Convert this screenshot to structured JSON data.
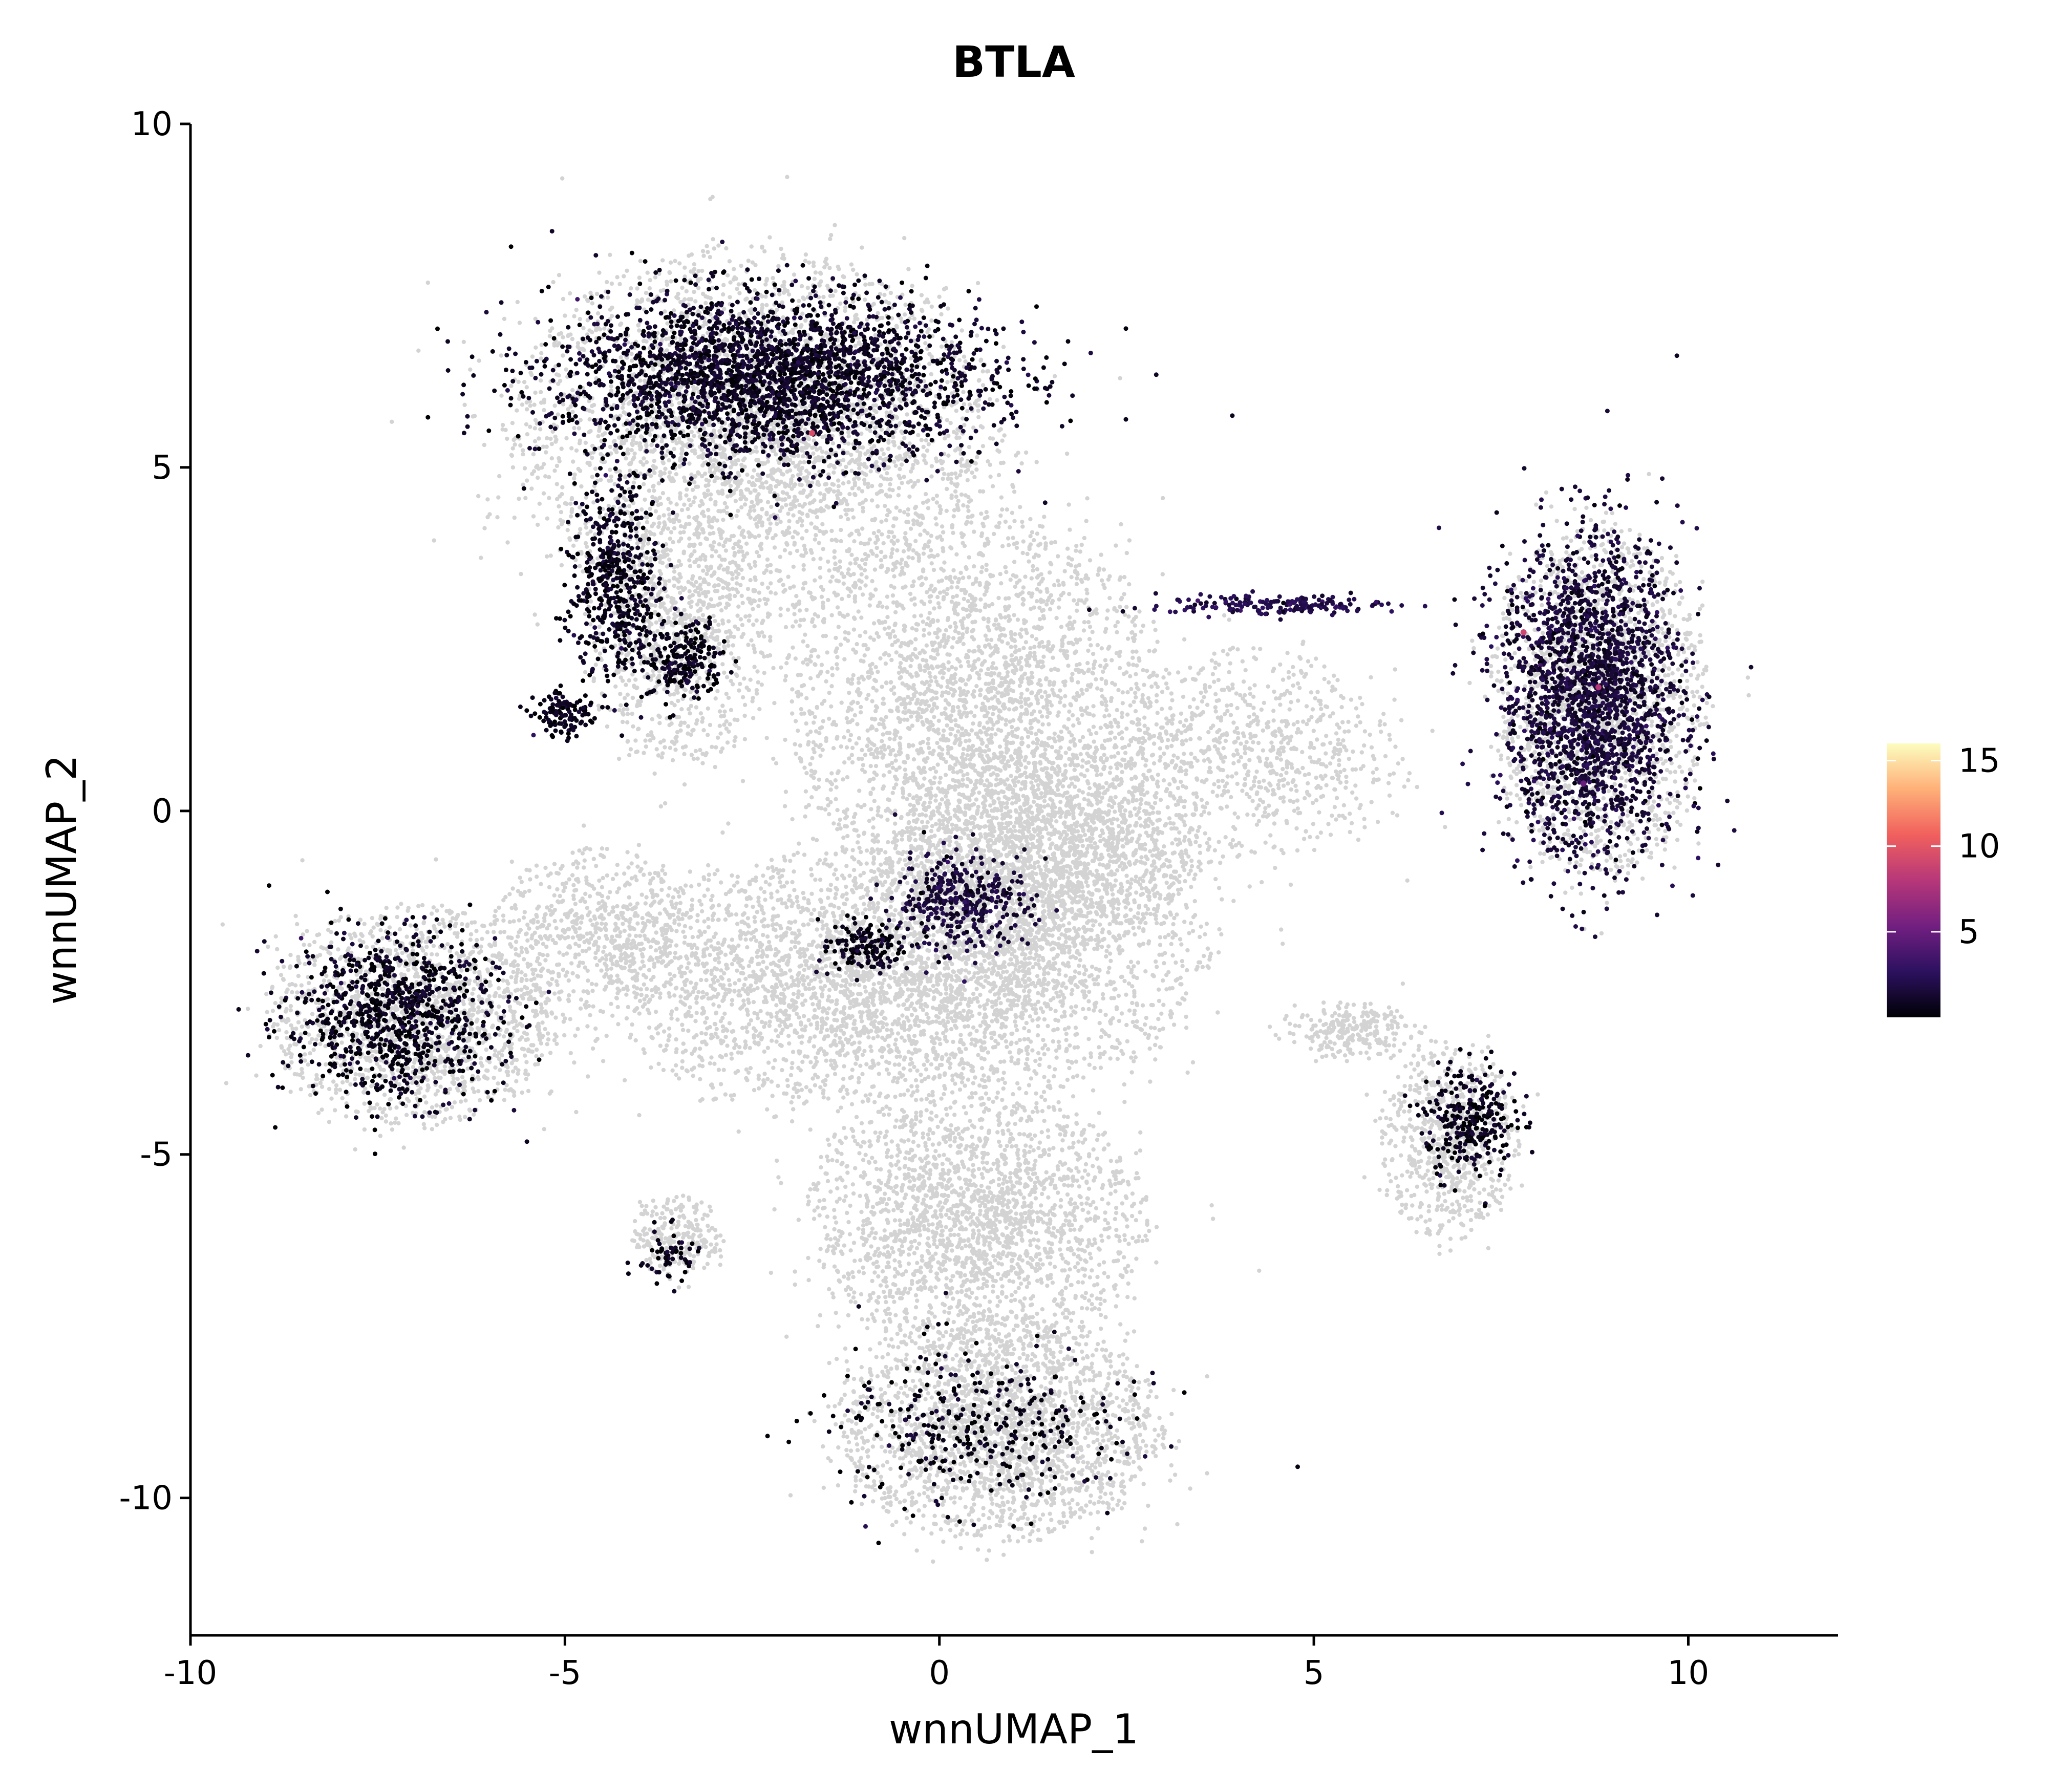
{
  "chart_data": {
    "type": "scatter",
    "title": "BTLA",
    "xlabel": "wnnUMAP_1",
    "ylabel": "wnnUMAP_2",
    "xlim": [
      -10,
      12
    ],
    "ylim": [
      -12,
      10
    ],
    "x_ticks": [
      -10,
      -5,
      0,
      5,
      10
    ],
    "x_tick_labels": [
      "-10",
      "-5",
      "0",
      "5",
      "10"
    ],
    "y_ticks": [
      -10,
      -5,
      0,
      5,
      10
    ],
    "y_tick_labels": [
      "-10",
      "-5",
      "0",
      "5",
      "10"
    ],
    "grid": false,
    "legend": {
      "position": "right",
      "type": "colorbar",
      "ticks": [
        5,
        10,
        15
      ],
      "tick_labels": [
        "5",
        "10",
        "15"
      ],
      "range": [
        0,
        16
      ],
      "colormap": "magma",
      "colors": [
        "#000004",
        "#2c115f",
        "#721f81",
        "#b73779",
        "#f1605d",
        "#feb078",
        "#fcfdbf"
      ]
    },
    "background_color": "#d3d3d3",
    "background_regions": [
      {
        "cx": -2.5,
        "cy": 5.5,
        "rx": 3.2,
        "ry": 2.6,
        "n": 3500
      },
      {
        "cx": -3.5,
        "cy": 2.5,
        "rx": 1.2,
        "ry": 1.8,
        "n": 800
      },
      {
        "cx": 0.5,
        "cy": 1.5,
        "rx": 2.5,
        "ry": 2.8,
        "n": 2800
      },
      {
        "cx": -1.5,
        "cy": -2.5,
        "rx": 2.8,
        "ry": 1.8,
        "n": 2200
      },
      {
        "cx": 1.0,
        "cy": -2.0,
        "rx": 2.5,
        "ry": 2.0,
        "n": 2000
      },
      {
        "cx": -7.0,
        "cy": -3.0,
        "rx": 1.9,
        "ry": 1.6,
        "n": 1600
      },
      {
        "cx": -4.5,
        "cy": -1.8,
        "rx": 1.5,
        "ry": 1.2,
        "n": 700
      },
      {
        "cx": 0.5,
        "cy": -6.0,
        "rx": 2.2,
        "ry": 1.9,
        "n": 2200
      },
      {
        "cx": 0.8,
        "cy": -9.0,
        "rx": 2.1,
        "ry": 1.6,
        "n": 2200
      },
      {
        "cx": -3.5,
        "cy": -6.2,
        "rx": 0.6,
        "ry": 0.6,
        "n": 250
      },
      {
        "cx": 4.2,
        "cy": 0.8,
        "rx": 2.0,
        "ry": 1.5,
        "n": 800
      },
      {
        "cx": 8.8,
        "cy": 1.6,
        "rx": 1.4,
        "ry": 2.5,
        "n": 1800
      },
      {
        "cx": 6.8,
        "cy": -4.8,
        "rx": 0.9,
        "ry": 1.4,
        "n": 700
      },
      {
        "cx": 5.5,
        "cy": -3.2,
        "rx": 0.9,
        "ry": 0.4,
        "n": 250
      },
      {
        "cx": 1.5,
        "cy": -0.5,
        "rx": 2.0,
        "ry": 1.5,
        "n": 1500
      }
    ],
    "expressing_regions": [
      {
        "cx": -2.3,
        "cy": 6.3,
        "rx": 2.9,
        "ry": 1.2,
        "n": 2600,
        "level": 0.8
      },
      {
        "cx": -4.3,
        "cy": 3.3,
        "rx": 0.6,
        "ry": 1.5,
        "n": 500,
        "level": 0.6
      },
      {
        "cx": -3.4,
        "cy": 2.2,
        "rx": 0.5,
        "ry": 0.6,
        "n": 200,
        "level": 0.5
      },
      {
        "cx": -5.0,
        "cy": 1.4,
        "rx": 0.4,
        "ry": 0.3,
        "n": 120,
        "level": 0.5
      },
      {
        "cx": 8.7,
        "cy": 1.7,
        "rx": 1.2,
        "ry": 2.3,
        "n": 2000,
        "level": 1.4
      },
      {
        "cx": 4.5,
        "cy": 3.0,
        "rx": 1.6,
        "ry": 0.15,
        "n": 180,
        "level": 2.0
      },
      {
        "cx": -7.3,
        "cy": -3.0,
        "rx": 1.4,
        "ry": 1.2,
        "n": 900,
        "level": 0.6
      },
      {
        "cx": 0.3,
        "cy": -1.3,
        "rx": 0.9,
        "ry": 0.7,
        "n": 350,
        "level": 1.5
      },
      {
        "cx": -1.0,
        "cy": -2.0,
        "rx": 0.6,
        "ry": 0.4,
        "n": 150,
        "level": 0.5
      },
      {
        "cx": 7.1,
        "cy": -4.5,
        "rx": 0.6,
        "ry": 0.8,
        "n": 280,
        "level": 0.6
      },
      {
        "cx": 0.5,
        "cy": -9.0,
        "rx": 2.0,
        "ry": 1.2,
        "n": 350,
        "level": 0.4
      },
      {
        "cx": -3.6,
        "cy": -6.5,
        "rx": 0.4,
        "ry": 0.4,
        "n": 60,
        "level": 0.4
      }
    ],
    "high_expression_points": [
      {
        "x": -1.7,
        "y": 5.5,
        "value": 9.5
      },
      {
        "x": 7.8,
        "y": 2.6,
        "value": 9.0
      },
      {
        "x": 8.8,
        "y": 1.8,
        "value": 8.0
      },
      {
        "x": 8.6,
        "y": 0.4,
        "value": 5.0
      }
    ]
  }
}
